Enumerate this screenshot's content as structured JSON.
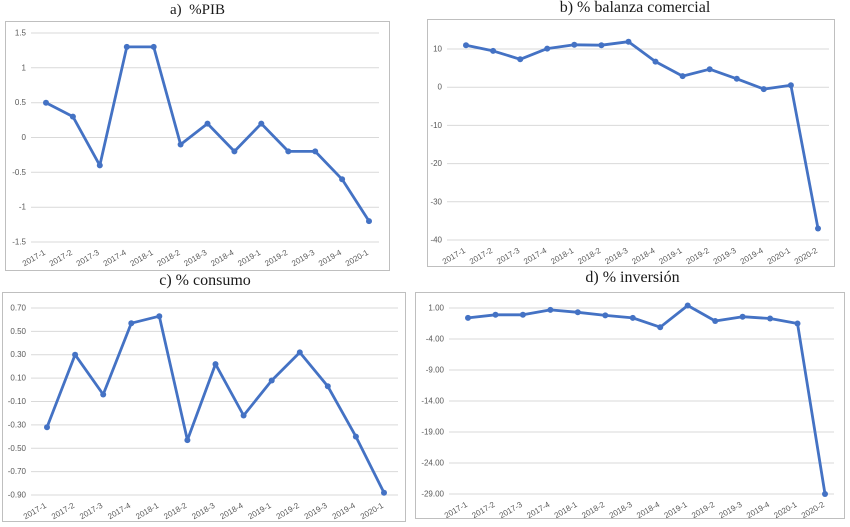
{
  "theme": {
    "line_color": "#4472C4",
    "grid_color": "#d9d9d9",
    "tick_color": "#595959",
    "panel_border_color": "#bfbfbf",
    "background": "#ffffff"
  },
  "chart_data": [
    {
      "id": "a",
      "type": "line",
      "title": "a)  %PIB",
      "categories": [
        "2017-1",
        "2017-2",
        "2017-3",
        "2017-4",
        "2018-1",
        "2018-2",
        "2018-3",
        "2018-4",
        "2019-1",
        "2019-2",
        "2019-3",
        "2019-4",
        "2020-1"
      ],
      "values": [
        0.5,
        0.3,
        -0.4,
        1.3,
        1.3,
        -0.1,
        0.2,
        -0.2,
        0.2,
        -0.2,
        -0.2,
        -0.6,
        -1.2
      ],
      "y_tick_values": [
        1.5,
        1,
        0.5,
        0,
        -0.5,
        -1,
        -1.5
      ],
      "y_tick_labels": [
        "1.5",
        "1",
        "0.5",
        "0",
        "-0.5",
        "-1",
        "-1.5"
      ],
      "ylim": [
        -1.5,
        1.5
      ],
      "xlabel": "",
      "ylabel": "",
      "grid": true,
      "legend": "none",
      "marker": "circle"
    },
    {
      "id": "b",
      "type": "line",
      "title": "b) % balanza comercial",
      "categories": [
        "2017-1",
        "2017-2",
        "2017-3",
        "2017-4",
        "2018-1",
        "2018-2",
        "2018-3",
        "2018-4",
        "2019-1",
        "2019-2",
        "2019-3",
        "2019-4",
        "2020-1",
        "2020-2"
      ],
      "values": [
        11.0,
        9.5,
        7.3,
        10.1,
        11.1,
        11.0,
        11.9,
        6.7,
        2.9,
        4.7,
        2.2,
        -0.5,
        0.5,
        -37.0
      ],
      "y_tick_values": [
        10,
        0,
        -10,
        -20,
        -30,
        -40
      ],
      "y_tick_labels": [
        "10",
        "0",
        "-10",
        "-20",
        "-30",
        "-40"
      ],
      "ylim": [
        -40,
        15
      ],
      "xlabel": "",
      "ylabel": "",
      "grid": true,
      "legend": "none",
      "marker": "circle"
    },
    {
      "id": "c",
      "type": "line",
      "title": "c) % consumo",
      "categories": [
        "2017-1",
        "2017-2",
        "2017-3",
        "2017-4",
        "2018-1",
        "2018-2",
        "2018-3",
        "2018-4",
        "2019-1",
        "2019-2",
        "2019-3",
        "2019-4",
        "2020-1"
      ],
      "values": [
        -0.32,
        0.3,
        -0.04,
        0.57,
        0.63,
        -0.43,
        0.22,
        -0.22,
        0.08,
        0.32,
        0.03,
        -0.4,
        -0.88
      ],
      "y_tick_values": [
        0.7,
        0.5,
        0.3,
        0.1,
        -0.1,
        -0.3,
        -0.5,
        -0.7,
        -0.9
      ],
      "y_tick_labels": [
        "0.70",
        "0.50",
        "0.30",
        "0.10",
        "-0.10",
        "-0.30",
        "-0.50",
        "-0.70",
        "-0.90"
      ],
      "ylim": [
        -0.9,
        0.7
      ],
      "xlabel": "",
      "ylabel": "",
      "grid": true,
      "legend": "none",
      "marker": "circle"
    },
    {
      "id": "d",
      "type": "line",
      "title": "d) % inversión",
      "categories": [
        "2017-1",
        "2017-2",
        "2017-3",
        "2017-4",
        "2018-1",
        "2018-2",
        "2018-3",
        "2018-4",
        "2019-1",
        "2019-2",
        "2019-3",
        "2019-4",
        "2020-1",
        "2020-2"
      ],
      "values": [
        -0.6,
        -0.1,
        -0.1,
        0.7,
        0.3,
        -0.2,
        -0.6,
        -2.1,
        1.4,
        -1.1,
        -0.4,
        -0.7,
        -1.5,
        -29.0
      ],
      "y_tick_values": [
        1.0,
        -4.0,
        -9.0,
        -14.0,
        -19.0,
        -24.0,
        -29.0
      ],
      "y_tick_labels": [
        "1.00",
        "-4.00",
        "-9.00",
        "-14.00",
        "-19.00",
        "-24.00",
        "-29.00"
      ],
      "ylim": [
        -29.0,
        1.0
      ],
      "xlabel": "",
      "ylabel": "",
      "grid": true,
      "legend": "none",
      "marker": "circle"
    }
  ]
}
